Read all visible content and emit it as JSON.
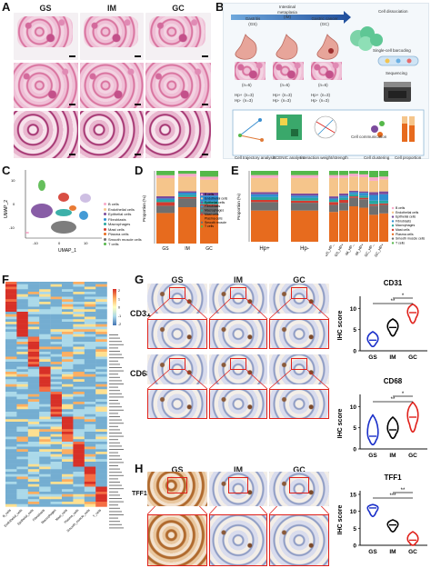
{
  "panels": {
    "A": {
      "label": "A",
      "columns": [
        "GS",
        "IM",
        "GC"
      ]
    },
    "B": {
      "label": "B",
      "stages": [
        "Gastritis (GS)",
        "Intestinal metaplasia (IM)",
        "Gastric cancer (GC)"
      ],
      "stage_lines": [
        [
          "Gastritis",
          "(GS)"
        ],
        [
          "Intestinal",
          "metaplasia",
          "(IM)"
        ],
        [
          "Gastric cancer",
          "(GC)"
        ]
      ],
      "counts": [
        "(n=6)",
        "(n=6)",
        "(n=6)"
      ],
      "hp_groups": [
        [
          "Hp+",
          "(n=3)",
          "Hp-",
          "(n=3)"
        ],
        [
          "Hp+",
          "(n=3)",
          "Hp-",
          "(n=3)"
        ],
        [
          "Hp+",
          "(n=3)",
          "Hp-",
          "(n=3)"
        ]
      ],
      "workflow": [
        "Cell dissociation",
        "Single-cell barcoding",
        "Sequencing"
      ],
      "analyses": [
        "Cell trajectory analysis",
        "SCENIC analysis",
        "Interaction weight/strength",
        "Cell communication",
        "Cell clustering",
        "Cell proportion"
      ]
    },
    "C": {
      "label": "C",
      "xlabel": "UMAP_1",
      "ylabel": "UMAP_2",
      "xticks": [
        "-10",
        "0",
        "10"
      ],
      "yticks": [
        "10",
        "0",
        "-10"
      ],
      "legend": [
        "B cells",
        "Endothelial cells",
        "Epithelial cells",
        "Fibroblasts",
        "Macrophages",
        "Mast cells",
        "Plasma cells",
        "Smooth muscle cells",
        "T cells"
      ]
    },
    "D": {
      "label": "D",
      "ylabel": "Proportion (%)"
    },
    "E": {
      "label": "E",
      "ylabel": "Proportion (%)"
    },
    "F": {
      "label": "F",
      "scale_ticks": [
        "2",
        "1",
        "0",
        "-1",
        "-2"
      ],
      "columns": [
        "B_cells",
        "Endothelial_cells",
        "Epithelial_cells",
        "Fibroblasts",
        "Macrophages",
        "Mast_cells",
        "Plasma_cells",
        "Smooth_muscle_cells",
        "T_cells"
      ]
    },
    "G": {
      "label": "G",
      "columns": [
        "GS",
        "IM",
        "GC"
      ],
      "rows": [
        "CD31",
        "CD68"
      ]
    },
    "H": {
      "label": "H",
      "columns": [
        "GS",
        "IM",
        "GC"
      ],
      "rows": [
        "TFF1"
      ]
    },
    "violins": [
      {
        "title": "CD31",
        "ylabel": "IHC score",
        "ylim": [
          0,
          12
        ],
        "yticks": [
          "0",
          "5",
          "10"
        ],
        "groups": [
          "GS",
          "IM",
          "GC"
        ],
        "stars": [
          "*",
          "**"
        ]
      },
      {
        "title": "CD68",
        "ylabel": "IHC score",
        "ylim": [
          0,
          12
        ],
        "yticks": [
          "0",
          "5",
          "10"
        ],
        "groups": [
          "GS",
          "IM",
          "GC"
        ],
        "stars": [
          "*",
          "**"
        ]
      },
      {
        "title": "TFF1",
        "ylabel": "IHC score",
        "ylim": [
          0,
          12
        ],
        "yticks": [
          "0",
          "5",
          "10",
          "15"
        ],
        "groups": [
          "GS",
          "IM",
          "GC"
        ],
        "stars": [
          "**",
          "***"
        ]
      }
    ]
  },
  "colors": {
    "B cells": "#f8a9c9",
    "Endothelial cells": "#f5c58b",
    "Epithelial cells": "#7b4b9c",
    "Fibroblasts": "#2f8fd0",
    "Macrophages": "#27a7a0",
    "Mast cells": "#d43b2f",
    "Plasma cells": "#e76b1e",
    "Smooth muscle cells": "#6f6f6f",
    "T cells": "#55b84a",
    "Extra1": "#c9b8e0",
    "Extra2": "#4c4c4c",
    "GS": "#1a2fc9",
    "IM": "#000000",
    "GC": "#e0201a"
  },
  "chart_data": [
    {
      "type": "bar",
      "panel": "D",
      "categories": [
        "GS",
        "IM",
        "GC"
      ],
      "ylabel": "Proportion (%)",
      "legend": [
        "B cells",
        "Endothelial cells",
        "Epithelial cells",
        "Fibroblasts",
        "Macrophages",
        "Mast cells",
        "Plasma cells",
        "Smooth muscle cells",
        "T cells"
      ],
      "series": [
        {
          "name": "Plasma cells",
          "values": [
            42,
            50,
            40
          ]
        },
        {
          "name": "Smooth muscle cells",
          "values": [
            10,
            12,
            12
          ]
        },
        {
          "name": "Mast cells",
          "values": [
            5,
            2,
            2
          ]
        },
        {
          "name": "Macrophages",
          "values": [
            3,
            3,
            4
          ]
        },
        {
          "name": "Fibroblasts",
          "values": [
            2,
            3,
            8
          ]
        },
        {
          "name": "Epithelial cells",
          "values": [
            3,
            2,
            4
          ]
        },
        {
          "name": "Endothelial cells",
          "values": [
            25,
            20,
            18
          ]
        },
        {
          "name": "B cells",
          "values": [
            4,
            4,
            4
          ]
        },
        {
          "name": "T cells",
          "values": [
            6,
            4,
            8
          ]
        }
      ]
    },
    {
      "type": "bar",
      "panel": "E-left",
      "categories": [
        "Hp+",
        "Hp-"
      ],
      "ylabel": "Proportion (%)",
      "series": [
        {
          "name": "Plasma cells",
          "values": [
            44,
            44
          ]
        },
        {
          "name": "Smooth muscle cells",
          "values": [
            12,
            11
          ]
        },
        {
          "name": "Mast cells",
          "values": [
            3,
            3
          ]
        },
        {
          "name": "Macrophages",
          "values": [
            4,
            4
          ]
        },
        {
          "name": "Fibroblasts",
          "values": [
            4,
            3
          ]
        },
        {
          "name": "Epithelial cells",
          "values": [
            3,
            3
          ]
        },
        {
          "name": "Endothelial cells",
          "values": [
            20,
            22
          ]
        },
        {
          "name": "B cells",
          "values": [
            4,
            4
          ]
        },
        {
          "name": "T cells",
          "values": [
            6,
            6
          ]
        }
      ]
    },
    {
      "type": "bar",
      "panel": "E-right",
      "categories": [
        "GS_HP_",
        "GS_HP+",
        "IM_HP_",
        "IM_HP+",
        "GC_HP_",
        "GC_HP+"
      ],
      "legend": [
        "B cells",
        "Endothelial cells",
        "Epithelial cells",
        "Fibroblasts",
        "Macrophages",
        "Mast cells",
        "Plasma cells",
        "Smooth muscle cells",
        "T cells"
      ],
      "series": [
        {
          "name": "Plasma cells",
          "values": [
            42,
            44,
            50,
            48,
            38,
            40
          ]
        },
        {
          "name": "Smooth muscle cells",
          "values": [
            10,
            11,
            12,
            12,
            13,
            12
          ]
        },
        {
          "name": "Mast cells",
          "values": [
            4,
            4,
            2,
            2,
            2,
            2
          ]
        },
        {
          "name": "Macrophages",
          "values": [
            3,
            3,
            3,
            3,
            5,
            4
          ]
        },
        {
          "name": "Fibroblasts",
          "values": [
            2,
            3,
            3,
            4,
            8,
            9
          ]
        },
        {
          "name": "Epithelial cells",
          "values": [
            3,
            3,
            2,
            2,
            4,
            4
          ]
        },
        {
          "name": "Endothelial cells",
          "values": [
            26,
            22,
            20,
            20,
            16,
            17
          ]
        },
        {
          "name": "B cells",
          "values": [
            4,
            4,
            4,
            4,
            5,
            4
          ]
        },
        {
          "name": "T cells",
          "values": [
            6,
            6,
            4,
            5,
            9,
            8
          ]
        }
      ]
    },
    {
      "type": "scatter",
      "panel": "violins",
      "charts": [
        {
          "title": "CD31",
          "groups": [
            "GS",
            "IM",
            "GC"
          ],
          "low": [
            1.0,
            3.5,
            6.5
          ],
          "high": [
            4.5,
            7.5,
            11.0
          ],
          "median": [
            2.5,
            5.5,
            9.0
          ]
        },
        {
          "title": "CD68",
          "groups": [
            "GS",
            "IM",
            "GC"
          ],
          "low": [
            1.0,
            2.5,
            4.0
          ],
          "high": [
            8.0,
            7.5,
            11.0
          ],
          "median": [
            3.0,
            4.5,
            7.5
          ]
        },
        {
          "title": "TFF1",
          "groups": [
            "GS",
            "IM",
            "GC"
          ],
          "low": [
            8.5,
            4.0,
            0.0
          ],
          "high": [
            12.0,
            7.5,
            4.0
          ],
          "median": [
            11.0,
            6.0,
            1.5
          ]
        }
      ]
    }
  ]
}
